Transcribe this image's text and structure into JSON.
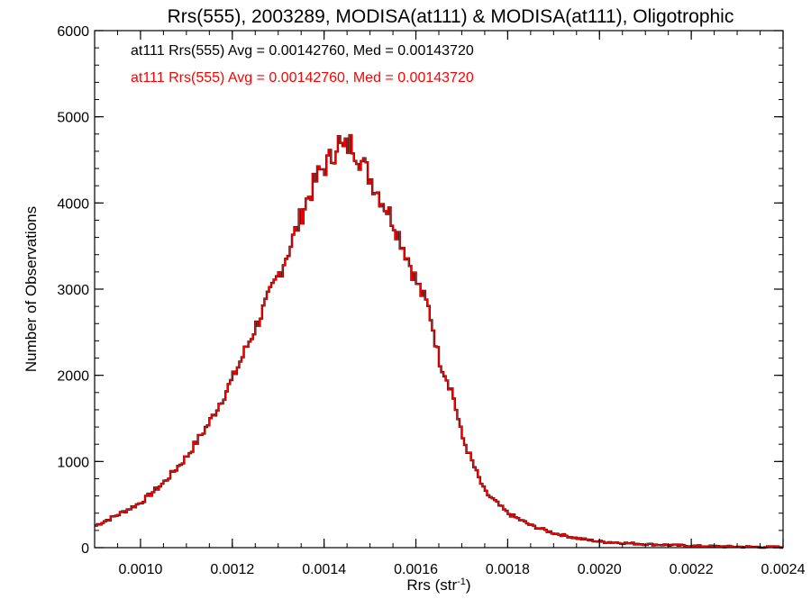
{
  "chart_data": {
    "type": "histogram-step",
    "title": "Rrs(555), 2003289, MODISA(at111) & MODISA(at111), Oligotrophic",
    "xlabel_main": "Rrs (str",
    "xlabel_sup": "-1",
    "xlabel_close": ")",
    "ylabel": "Number of Observations",
    "xlim": [
      0.0009,
      0.0024
    ],
    "ylim": [
      0,
      6000
    ],
    "grid": false,
    "xticks": [
      {
        "value": 0.001,
        "label": "0.0010"
      },
      {
        "value": 0.0012,
        "label": "0.0012"
      },
      {
        "value": 0.0014,
        "label": "0.0014"
      },
      {
        "value": 0.0016,
        "label": "0.0016"
      },
      {
        "value": 0.0018,
        "label": "0.0018"
      },
      {
        "value": 0.002,
        "label": "0.0020"
      },
      {
        "value": 0.0022,
        "label": "0.0022"
      },
      {
        "value": 0.0024,
        "label": "0.0024"
      }
    ],
    "yticks": [
      {
        "value": 0,
        "label": "0"
      },
      {
        "value": 1000,
        "label": "1000"
      },
      {
        "value": 2000,
        "label": "2000"
      },
      {
        "value": 3000,
        "label": "3000"
      },
      {
        "value": 4000,
        "label": "4000"
      },
      {
        "value": 5000,
        "label": "5000"
      },
      {
        "value": 6000,
        "label": "6000"
      }
    ],
    "annotations": [
      {
        "text": "at111 Rrs(555) Avg = 0.00142760, Med = 0.00143720",
        "color": "#000000"
      },
      {
        "text": "at111 Rrs(555) Avg = 0.00142760, Med = 0.00143720",
        "color": "#ff0000"
      }
    ],
    "series": [
      {
        "color": "#000000",
        "x": [
          0.0009,
          0.00095,
          0.001,
          0.00105,
          0.0011,
          0.00115,
          0.0012,
          0.00125,
          0.0013,
          0.00133,
          0.00136,
          0.00139,
          0.00142,
          0.00143,
          0.00144,
          0.00146,
          0.00148,
          0.0015,
          0.00152,
          0.00155,
          0.00158,
          0.0016,
          0.00163,
          0.00165,
          0.00168,
          0.0017,
          0.00173,
          0.00175,
          0.0018,
          0.00185,
          0.0019,
          0.00195,
          0.002,
          0.0021,
          0.0022,
          0.0023,
          0.0024
        ],
        "y": [
          250,
          380,
          520,
          750,
          1050,
          1450,
          1950,
          2550,
          3150,
          3550,
          4000,
          4350,
          4550,
          4750,
          4600,
          4700,
          4500,
          4300,
          4100,
          3800,
          3400,
          3100,
          2750,
          2200,
          1800,
          1300,
          900,
          650,
          400,
          260,
          170,
          110,
          70,
          40,
          20,
          10,
          5
        ]
      },
      {
        "color": "#ff0000",
        "x": [
          0.0009,
          0.00095,
          0.001,
          0.00105,
          0.0011,
          0.00115,
          0.0012,
          0.00125,
          0.0013,
          0.00133,
          0.00136,
          0.00139,
          0.00142,
          0.00143,
          0.00144,
          0.00146,
          0.00148,
          0.0015,
          0.00152,
          0.00155,
          0.00158,
          0.0016,
          0.00163,
          0.00165,
          0.00168,
          0.0017,
          0.00173,
          0.00175,
          0.0018,
          0.00185,
          0.0019,
          0.00195,
          0.002,
          0.0021,
          0.0022,
          0.0023,
          0.0024
        ],
        "y": [
          250,
          380,
          520,
          750,
          1050,
          1450,
          1950,
          2550,
          3150,
          3550,
          4000,
          4350,
          4550,
          4750,
          4600,
          4700,
          4500,
          4300,
          4100,
          3800,
          3400,
          3100,
          2750,
          2200,
          1800,
          1300,
          900,
          650,
          400,
          260,
          170,
          110,
          70,
          40,
          20,
          10,
          5
        ]
      }
    ]
  }
}
